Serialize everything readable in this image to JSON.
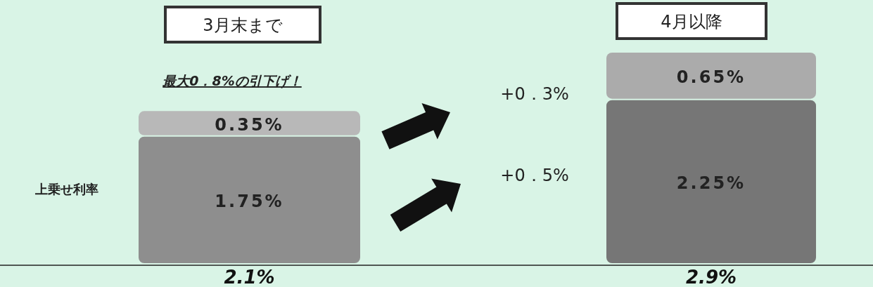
{
  "chart_data": {
    "type": "bar",
    "stacked": true,
    "categories": [
      "3月末まで",
      "4月以降"
    ],
    "series": [
      {
        "values": [
          1.75,
          2.25
        ],
        "colors": [
          "#8e8e8e",
          "#767676"
        ],
        "value_labels": [
          "1.75%",
          "2.25%"
        ]
      },
      {
        "values": [
          0.35,
          0.65
        ],
        "colors": [
          "#b8b8b8",
          "#ababab"
        ],
        "value_labels": [
          "0.35%",
          "0.65%"
        ]
      }
    ],
    "totals": [
      "2.1%",
      "2.9%"
    ],
    "annotations": [
      "最大0．8%の引下げ！",
      "+0．3%",
      "+0．5%",
      "上乗せ利率"
    ]
  }
}
